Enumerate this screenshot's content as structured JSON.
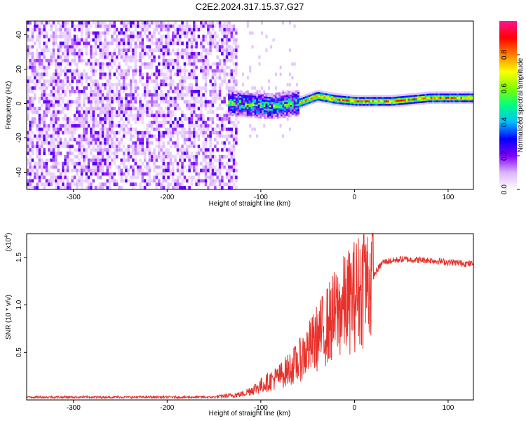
{
  "title": "C2E2.2024.317.15.37.G27",
  "chart_data": [
    {
      "type": "heatmap",
      "xlabel": "Height of straight line (km)",
      "ylabel": "Frequency (Hz)",
      "xlim": [
        -350,
        127
      ],
      "ylim": [
        -50,
        48
      ],
      "x_ticks": [
        -300,
        -200,
        -100,
        0,
        100
      ],
      "y_ticks": [
        -40,
        -20,
        0,
        20,
        40
      ],
      "noise_region_x": [
        -350,
        -125
      ],
      "signal_line": [
        {
          "x": -135,
          "y": 0
        },
        {
          "x": -90,
          "y": -2
        },
        {
          "x": -60,
          "y": 0
        },
        {
          "x": -40,
          "y": 4
        },
        {
          "x": -20,
          "y": 2
        },
        {
          "x": 0,
          "y": 1
        },
        {
          "x": 40,
          "y": 1
        },
        {
          "x": 80,
          "y": 3
        },
        {
          "x": 127,
          "y": 3
        }
      ],
      "colorbar": {
        "label": "Normalized spectral amplitude",
        "range": [
          0.0,
          1.0
        ],
        "ticks": [
          "0.0",
          "0.2",
          "0.4",
          "0.6",
          "0.8"
        ],
        "colors": [
          "#ffffff",
          "#dcb4ff",
          "#7f00ff",
          "#0000ff",
          "#00bfff",
          "#00ff7f",
          "#7fff00",
          "#ffff00",
          "#ff7f00",
          "#ff0000",
          "#ff1493"
        ]
      }
    },
    {
      "type": "line",
      "xlabel": "Height of straight line (km)",
      "ylabel": "SNR (10 * v/v)",
      "y_multiplier": "(x10",
      "y_multiplier_exp": "4",
      "y_multiplier_close": ")",
      "xlim": [
        -350,
        127
      ],
      "ylim": [
        0,
        17500
      ],
      "x_ticks": [
        -300,
        -200,
        -100,
        0,
        100
      ],
      "y_ticks": [
        5000,
        10000,
        15000
      ],
      "y_tick_labels": [
        "0.5",
        "1.0",
        "1.5"
      ],
      "line_color": "#e8312b",
      "envelope": [
        {
          "x": -350,
          "y": 300
        },
        {
          "x": -150,
          "y": 300
        },
        {
          "x": -120,
          "y": 600
        },
        {
          "x": -100,
          "y": 1500
        },
        {
          "x": -80,
          "y": 2500
        },
        {
          "x": -60,
          "y": 4000
        },
        {
          "x": -40,
          "y": 6500
        },
        {
          "x": -20,
          "y": 9000
        },
        {
          "x": 0,
          "y": 11000
        },
        {
          "x": 10,
          "y": 12000
        },
        {
          "x": 20,
          "y": 13000
        },
        {
          "x": 30,
          "y": 14500
        },
        {
          "x": 50,
          "y": 14800
        },
        {
          "x": 80,
          "y": 14700
        },
        {
          "x": 100,
          "y": 14500
        },
        {
          "x": 127,
          "y": 14300
        }
      ],
      "spike": {
        "x": 10,
        "y": 17400
      }
    }
  ]
}
